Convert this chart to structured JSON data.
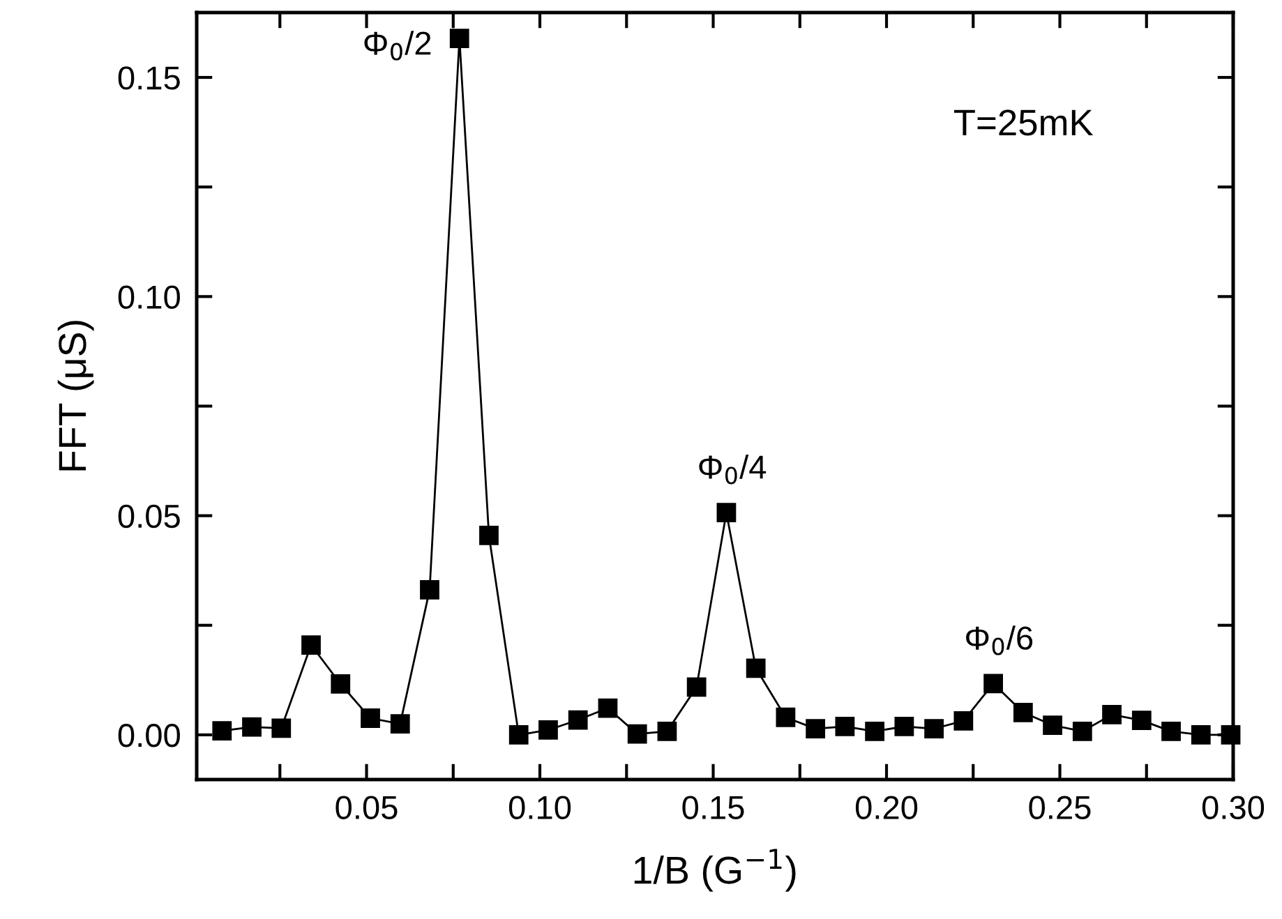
{
  "chart_data": {
    "type": "line",
    "xlabel": "1/B (G$^{−1}$)",
    "ylabel": "FFT (μS)",
    "x": [
      0.0083,
      0.0169,
      0.0254,
      0.034,
      0.0425,
      0.0511,
      0.0597,
      0.0682,
      0.0768,
      0.0853,
      0.0939,
      0.1024,
      0.111,
      0.1196,
      0.1281,
      0.1367,
      0.1452,
      0.1538,
      0.1623,
      0.1709,
      0.1795,
      0.188,
      0.1966,
      0.2051,
      0.2137,
      0.2222,
      0.2308,
      0.2394,
      0.2479,
      0.2565,
      0.265,
      0.2736,
      0.2821,
      0.2907,
      0.2993
    ],
    "series": [
      {
        "color": "#000000",
        "values": [
          0.0009,
          0.0018,
          0.0015,
          0.0205,
          0.0116,
          0.0038,
          0.0025,
          0.0331,
          0.1589,
          0.0455,
          0.0,
          0.0011,
          0.0034,
          0.0061,
          0.0002,
          0.0008,
          0.0109,
          0.0507,
          0.0152,
          0.004,
          0.0014,
          0.0019,
          0.0008,
          0.0019,
          0.0014,
          0.0032,
          0.0117,
          0.0051,
          0.0022,
          0.0008,
          0.0046,
          0.0033,
          0.0008,
          0.0,
          0.0
        ]
      }
    ],
    "marker": "square",
    "line_style": "solid",
    "grid": false,
    "legend": false,
    "xlim": [
      0.001,
      0.3
    ],
    "ylim": [
      -0.0102,
      0.1648
    ],
    "xticks": [
      {
        "value": 0.025,
        "label": null
      },
      0.05,
      {
        "value": 0.075,
        "label": null
      },
      {
        "value": 0.1,
        "label": "0.10"
      },
      {
        "value": 0.125,
        "label": null
      },
      0.15,
      {
        "value": 0.175,
        "label": null
      },
      {
        "value": 0.2,
        "label": "0.20"
      },
      {
        "value": 0.225,
        "label": null
      },
      0.25,
      {
        "value": 0.275,
        "label": null
      },
      {
        "value": 0.3,
        "label": "0.30"
      }
    ],
    "yticks": [
      {
        "value": 0,
        "label": "0.00"
      },
      {
        "value": 0.025,
        "label": null
      },
      0.05,
      {
        "value": 0.075,
        "label": null
      },
      {
        "value": 0.1,
        "label": "0.10"
      },
      {
        "value": 0.125,
        "label": null
      },
      0.15
    ],
    "annotations": [
      {
        "text": "Φ$_{0}$/2",
        "x": 0.0768,
        "y": 0.1589
      },
      {
        "text": "Φ$_{0}$/4",
        "x": 0.1538,
        "y": 0.0507
      },
      {
        "text": "Φ$_{0}$/6",
        "x": 0.2308,
        "y": 0.0117
      },
      "T=25mK"
    ]
  }
}
